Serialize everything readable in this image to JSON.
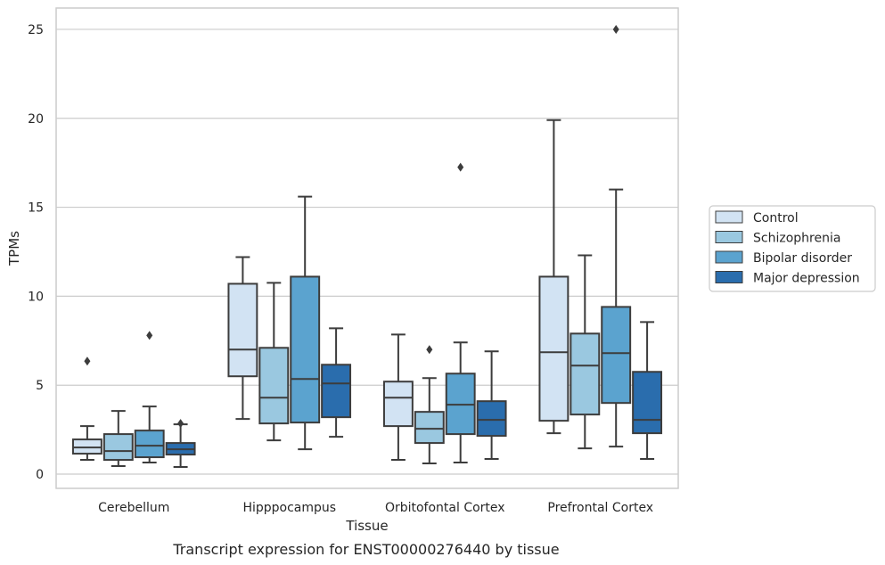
{
  "caption": "Transcript expression for ENST00000276440 by tissue",
  "chart_data": {
    "type": "box",
    "xlabel": "Tissue",
    "ylabel": "TPMs",
    "ylim": [
      -0.8,
      26.2
    ],
    "yticks": [
      0,
      5,
      10,
      15,
      20,
      25
    ],
    "grid": "y",
    "legend_position": "right",
    "categories": [
      "Cerebellum",
      "Hipppocampus",
      "Orbitofontal Cortex",
      "Prefrontal Cortex"
    ],
    "series": [
      {
        "name": "Control",
        "color": "#d2e3f3",
        "boxes": [
          {
            "whislo": 0.8,
            "q1": 1.15,
            "med": 1.5,
            "q3": 1.95,
            "whishi": 2.7,
            "fliers": [
              6.35
            ]
          },
          {
            "whislo": 3.1,
            "q1": 5.5,
            "med": 7.0,
            "q3": 10.7,
            "whishi": 12.2,
            "fliers": []
          },
          {
            "whislo": 0.8,
            "q1": 2.7,
            "med": 4.3,
            "q3": 5.2,
            "whishi": 7.85,
            "fliers": []
          },
          {
            "whislo": 2.3,
            "q1": 3.0,
            "med": 6.85,
            "q3": 11.1,
            "whishi": 19.9,
            "fliers": []
          }
        ]
      },
      {
        "name": "Schizophrenia",
        "color": "#9ac8e0",
        "boxes": [
          {
            "whislo": 0.45,
            "q1": 0.8,
            "med": 1.3,
            "q3": 2.25,
            "whishi": 3.55,
            "fliers": []
          },
          {
            "whislo": 1.9,
            "q1": 2.85,
            "med": 4.3,
            "q3": 7.1,
            "whishi": 10.75,
            "fliers": []
          },
          {
            "whislo": 0.6,
            "q1": 1.75,
            "med": 2.55,
            "q3": 3.5,
            "whishi": 5.4,
            "fliers": [
              7.0
            ]
          },
          {
            "whislo": 1.45,
            "q1": 3.35,
            "med": 6.1,
            "q3": 7.9,
            "whishi": 12.3,
            "fliers": []
          }
        ]
      },
      {
        "name": "Bipolar disorder",
        "color": "#5ba3cf",
        "boxes": [
          {
            "whislo": 0.65,
            "q1": 0.95,
            "med": 1.6,
            "q3": 2.45,
            "whishi": 3.8,
            "fliers": [
              7.8
            ]
          },
          {
            "whislo": 1.4,
            "q1": 2.9,
            "med": 5.35,
            "q3": 11.1,
            "whishi": 15.6,
            "fliers": []
          },
          {
            "whislo": 0.65,
            "q1": 2.25,
            "med": 3.9,
            "q3": 5.65,
            "whishi": 7.4,
            "fliers": [
              17.25
            ]
          },
          {
            "whislo": 1.55,
            "q1": 4.0,
            "med": 6.8,
            "q3": 9.4,
            "whishi": 16.0,
            "fliers": [
              25.0
            ]
          }
        ]
      },
      {
        "name": "Major depression",
        "color": "#2a6dad",
        "boxes": [
          {
            "whislo": 0.4,
            "q1": 1.1,
            "med": 1.4,
            "q3": 1.75,
            "whishi": 2.8,
            "fliers": [
              2.85
            ]
          },
          {
            "whislo": 2.1,
            "q1": 3.2,
            "med": 5.1,
            "q3": 6.15,
            "whishi": 8.2,
            "fliers": []
          },
          {
            "whislo": 0.85,
            "q1": 2.15,
            "med": 3.05,
            "q3": 4.1,
            "whishi": 6.9,
            "fliers": []
          },
          {
            "whislo": 0.85,
            "q1": 2.3,
            "med": 3.05,
            "q3": 5.75,
            "whishi": 8.55,
            "fliers": []
          }
        ]
      }
    ]
  }
}
